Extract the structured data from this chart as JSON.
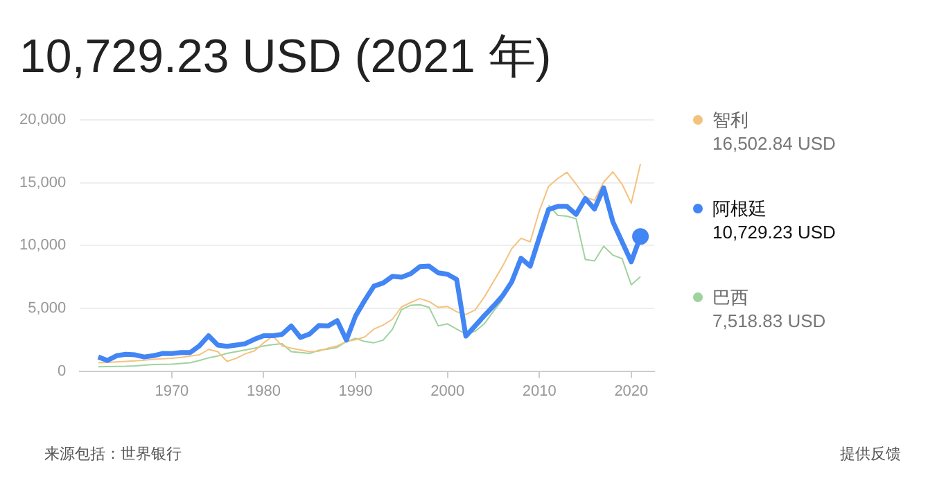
{
  "chart_data": {
    "type": "line",
    "title": "10,729.23 USD (2021 年)",
    "x": [
      1962,
      1963,
      1964,
      1965,
      1966,
      1967,
      1968,
      1969,
      1970,
      1971,
      1972,
      1973,
      1974,
      1975,
      1976,
      1977,
      1978,
      1979,
      1980,
      1981,
      1982,
      1983,
      1984,
      1985,
      1986,
      1987,
      1988,
      1989,
      1990,
      1991,
      1992,
      1993,
      1994,
      1995,
      1996,
      1997,
      1998,
      1999,
      2000,
      2001,
      2002,
      2003,
      2004,
      2005,
      2006,
      2007,
      2008,
      2009,
      2010,
      2011,
      2012,
      2013,
      2014,
      2015,
      2016,
      2017,
      2018,
      2019,
      2020,
      2021
    ],
    "series": [
      {
        "name": "智利",
        "color": "#f5c27e",
        "values": [
          670,
          700,
          740,
          780,
          820,
          880,
          950,
          990,
          1020,
          1100,
          1200,
          1300,
          1730,
          1550,
          780,
          1020,
          1380,
          1620,
          2260,
          2790,
          2010,
          1830,
          1690,
          1550,
          1590,
          1830,
          2010,
          2360,
          2500,
          2720,
          3350,
          3670,
          4130,
          5110,
          5470,
          5780,
          5540,
          5080,
          5150,
          4730,
          4510,
          4870,
          5890,
          7120,
          8360,
          9770,
          10580,
          10300,
          12770,
          14710,
          15340,
          15840,
          14890,
          13860,
          13610,
          15060,
          15870,
          14890,
          13370,
          16502.84
        ]
      },
      {
        "name": "阿根廷",
        "color": "#4285f4",
        "values": [
          1130,
          850,
          1230,
          1340,
          1300,
          1130,
          1230,
          1410,
          1400,
          1480,
          1480,
          2010,
          2820,
          2080,
          1980,
          2080,
          2190,
          2540,
          2820,
          2820,
          2930,
          3600,
          2680,
          2960,
          3630,
          3600,
          4020,
          2470,
          4400,
          5640,
          6770,
          7020,
          7550,
          7480,
          7760,
          8320,
          8360,
          7830,
          7720,
          7300,
          2790,
          3600,
          4410,
          5180,
          6000,
          7120,
          8990,
          8360,
          10650,
          12870,
          13120,
          13120,
          12490,
          13750,
          12910,
          14600,
          11890,
          10300,
          8710,
          10729.23
        ]
      },
      {
        "name": "巴西",
        "color": "#9fd29f",
        "values": [
          350,
          360,
          380,
          390,
          420,
          470,
          530,
          540,
          560,
          610,
          670,
          850,
          1060,
          1200,
          1410,
          1550,
          1690,
          1830,
          2010,
          2120,
          2190,
          1550,
          1480,
          1410,
          1660,
          1760,
          1900,
          2360,
          2610,
          2360,
          2260,
          2470,
          3320,
          4900,
          5250,
          5290,
          5080,
          3600,
          3770,
          3350,
          2960,
          3170,
          3770,
          4760,
          5710,
          null,
          null,
          null,
          null,
          13220,
          12410,
          12340,
          12130,
          8890,
          8780,
          9950,
          9240,
          8960,
          6880,
          7518.83
        ]
      },
      {
        "type": "scatter",
        "color": "#4285f4",
        "x": [
          2021
        ],
        "values": [
          10729.23
        ]
      }
    ],
    "annotations": [
      "16,502.84 USD",
      "10,729.23 USD",
      "7,518.83 USD",
      "来源包括：世界银行",
      "提供反馈"
    ],
    "xlim": [
      1960,
      2022.5
    ],
    "xticks": [
      1970,
      1980,
      1990,
      2000,
      2010,
      2020
    ],
    "ylim": [
      0,
      20000
    ],
    "yticks": [
      0,
      {
        "value": 5000,
        "label": "5,000"
      },
      {
        "value": 10000,
        "label": "10,000"
      },
      {
        "value": 15000,
        "label": "15,000"
      },
      {
        "value": 20000,
        "label": "20,000"
      }
    ],
    "grid": "y",
    "legend": "right"
  }
}
